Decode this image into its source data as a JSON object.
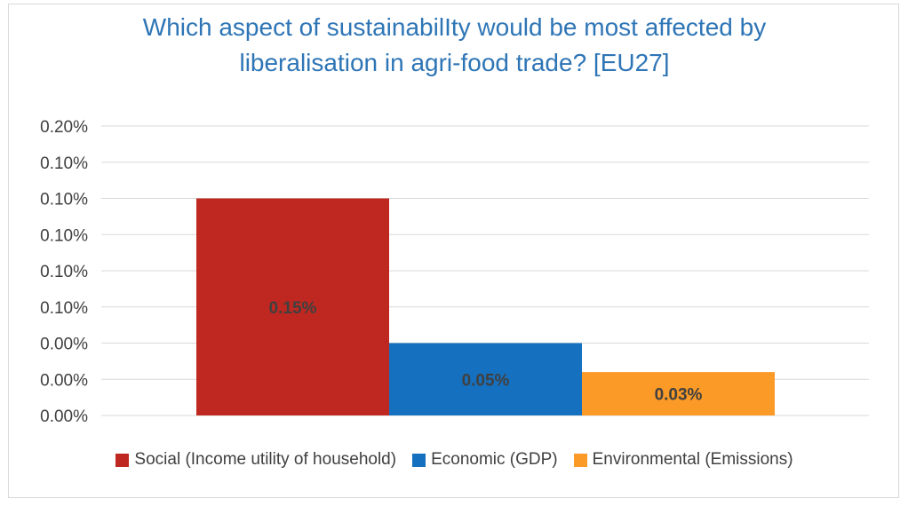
{
  "chart_data": {
    "type": "bar",
    "title_lines": [
      "Which aspect of sustainabilIty would be most affected by",
      "liberalisation in agri-food trade? [EU27]"
    ],
    "y_tick_labels": [
      "0.00%",
      "0.00%",
      "0.00%",
      "0.10%",
      "0.10%",
      "0.10%",
      "0.10%",
      "0.10%",
      "0.20%"
    ],
    "ylim": [
      0,
      0.2
    ],
    "grid": true,
    "legend_position": "bottom",
    "series": [
      {
        "name": "Social (Income utility of household)",
        "value": 0.15,
        "label": "0.15%",
        "color": "#bf2820"
      },
      {
        "name": "Economic (GDP)",
        "value": 0.05,
        "label": "0.05%",
        "color": "#1570c0"
      },
      {
        "name": "Environmental (Emissions)",
        "value": 0.03,
        "label": "0.03%",
        "color": "#fb9a26"
      }
    ]
  }
}
